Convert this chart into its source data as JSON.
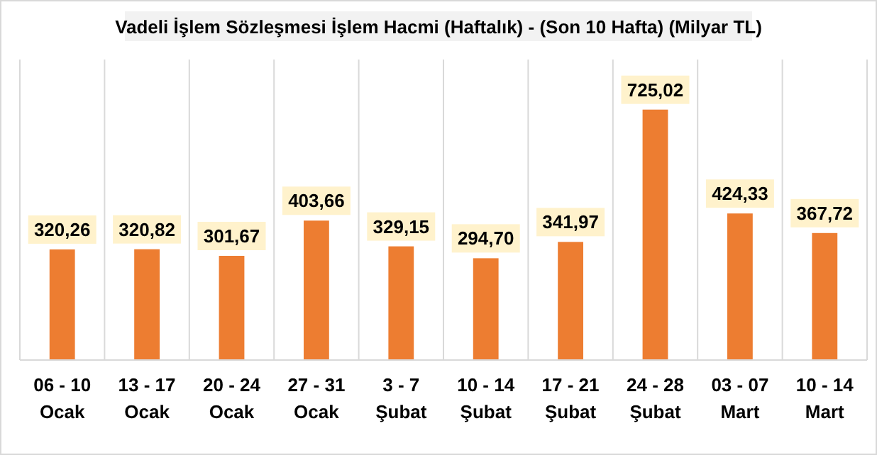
{
  "chart_data": {
    "type": "bar",
    "title": "Vadeli İşlem Sözleşmesi İşlem Hacmi (Haftalık) - (Son 10 Hafta) (Milyar TL)",
    "categories": [
      "06 - 10\nOcak",
      "13 - 17\nOcak",
      "20 - 24\nOcak",
      "27 - 31\nOcak",
      "3 - 7\nŞubat",
      "10 - 14\nŞubat",
      "17 - 21\nŞubat",
      "24 - 28\nŞubat",
      "03 - 07\nMart",
      "10 - 14\nMart"
    ],
    "values": [
      320.26,
      320.82,
      301.67,
      403.66,
      329.15,
      294.7,
      341.97,
      725.02,
      424.33,
      367.72
    ],
    "value_labels": [
      "320,26",
      "320,82",
      "301,67",
      "403,66",
      "329,15",
      "294,70",
      "341,97",
      "725,02",
      "424,33",
      "367,72"
    ],
    "color": "#ed7d31",
    "grid": "x"
  }
}
